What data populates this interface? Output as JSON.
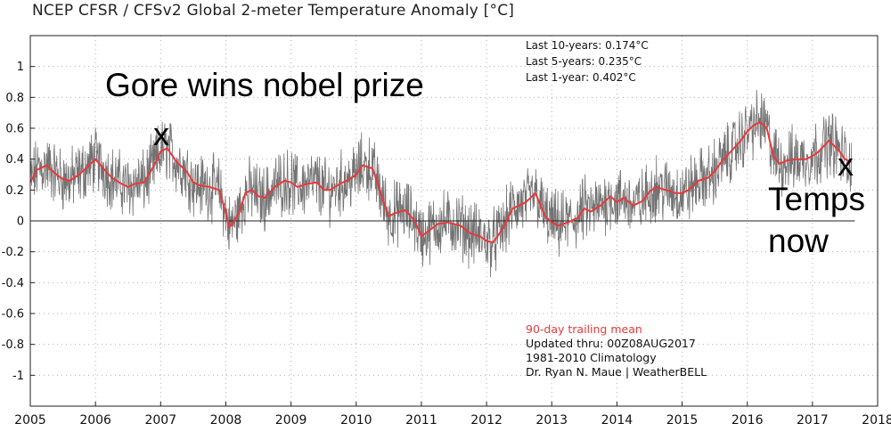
{
  "title": "NCEP CFSR / CFSv2 Global 2-meter Temperature Anomaly [°C]",
  "stats": [
    "Last 10-years: 0.174°C",
    "Last 5-years: 0.235°C",
    "Last 1-year:  0.402°C"
  ],
  "notes": {
    "mean_label": "90-day trailing mean",
    "updated": "Updated thru: 00Z08AUG2017",
    "climatology": "1981-2010 Climatology",
    "credit": "Dr. Ryan N. Maue | WeatherBELL"
  },
  "annotations": {
    "gore_headline": "Gore wins nobel prize",
    "gore_mark": "x",
    "now_mark": "x",
    "now_line1": "Temps",
    "now_line2": "now"
  },
  "colors": {
    "daily": "#5a5a5a",
    "mean": "#e8393c",
    "grid": "#b0b0b0"
  },
  "chart_data": {
    "type": "line",
    "title": "NCEP CFSR / CFSv2 Global 2-meter Temperature Anomaly [°C]",
    "xlabel": "",
    "ylabel": "",
    "xlim": [
      2005,
      2018
    ],
    "ylim": [
      -1.2,
      1.2
    ],
    "x_ticks": [
      "2005",
      "2006",
      "2007",
      "2008",
      "2009",
      "2010",
      "2011",
      "2012",
      "2013",
      "2014",
      "2015",
      "2016",
      "2017",
      "2018"
    ],
    "y_ticks": [
      1,
      0.8,
      0.6,
      0.4,
      0.2,
      0,
      -0.2,
      -0.4,
      -0.6,
      -0.8,
      -1
    ],
    "grid": true,
    "series": [
      {
        "name": "90-day trailing mean",
        "x": [
          2005.0,
          2005.1,
          2005.25,
          2005.4,
          2005.5,
          2005.6,
          2005.75,
          2005.9,
          2006.0,
          2006.1,
          2006.25,
          2006.4,
          2006.5,
          2006.6,
          2006.75,
          2006.9,
          2007.0,
          2007.1,
          2007.25,
          2007.4,
          2007.5,
          2007.6,
          2007.75,
          2007.9,
          2008.0,
          2008.05,
          2008.1,
          2008.2,
          2008.3,
          2008.4,
          2008.5,
          2008.6,
          2008.75,
          2008.9,
          2009.0,
          2009.1,
          2009.25,
          2009.4,
          2009.5,
          2009.6,
          2009.75,
          2009.9,
          2010.0,
          2010.1,
          2010.25,
          2010.4,
          2010.5,
          2010.6,
          2010.75,
          2010.9,
          2011.0,
          2011.1,
          2011.25,
          2011.4,
          2011.5,
          2011.6,
          2011.75,
          2011.9,
          2012.0,
          2012.1,
          2012.25,
          2012.4,
          2012.5,
          2012.6,
          2012.75,
          2012.9,
          2013.0,
          2013.1,
          2013.25,
          2013.4,
          2013.5,
          2013.6,
          2013.75,
          2013.9,
          2014.0,
          2014.1,
          2014.25,
          2014.4,
          2014.5,
          2014.6,
          2014.75,
          2014.9,
          2015.0,
          2015.1,
          2015.25,
          2015.4,
          2015.5,
          2015.6,
          2015.75,
          2015.9,
          2016.0,
          2016.1,
          2016.2,
          2016.3,
          2016.4,
          2016.5,
          2016.6,
          2016.75,
          2016.9,
          2017.0,
          2017.1,
          2017.25,
          2017.4,
          2017.5,
          2017.6
        ],
        "y": [
          0.25,
          0.33,
          0.36,
          0.3,
          0.27,
          0.26,
          0.3,
          0.36,
          0.4,
          0.35,
          0.28,
          0.24,
          0.22,
          0.24,
          0.25,
          0.36,
          0.45,
          0.47,
          0.38,
          0.32,
          0.25,
          0.23,
          0.22,
          0.2,
          0.05,
          -0.04,
          -0.02,
          0.05,
          0.18,
          0.2,
          0.16,
          0.15,
          0.22,
          0.26,
          0.25,
          0.22,
          0.24,
          0.25,
          0.2,
          0.2,
          0.24,
          0.27,
          0.3,
          0.36,
          0.34,
          0.15,
          0.03,
          0.05,
          0.07,
          0.0,
          -0.1,
          -0.07,
          -0.02,
          -0.01,
          -0.02,
          -0.03,
          -0.08,
          -0.1,
          -0.13,
          -0.14,
          -0.05,
          0.08,
          0.1,
          0.12,
          0.18,
          0.03,
          -0.01,
          -0.03,
          -0.01,
          0.02,
          0.08,
          0.06,
          0.1,
          0.16,
          0.12,
          0.15,
          0.1,
          0.13,
          0.19,
          0.22,
          0.2,
          0.18,
          0.18,
          0.2,
          0.26,
          0.28,
          0.32,
          0.38,
          0.45,
          0.52,
          0.58,
          0.62,
          0.64,
          0.6,
          0.42,
          0.37,
          0.39,
          0.4,
          0.4,
          0.42,
          0.45,
          0.52,
          0.46,
          0.4,
          0.38
        ]
      }
    ],
    "annotations": [
      "Gore wins nobel prize",
      "x",
      "x",
      "Temps",
      "now"
    ]
  }
}
